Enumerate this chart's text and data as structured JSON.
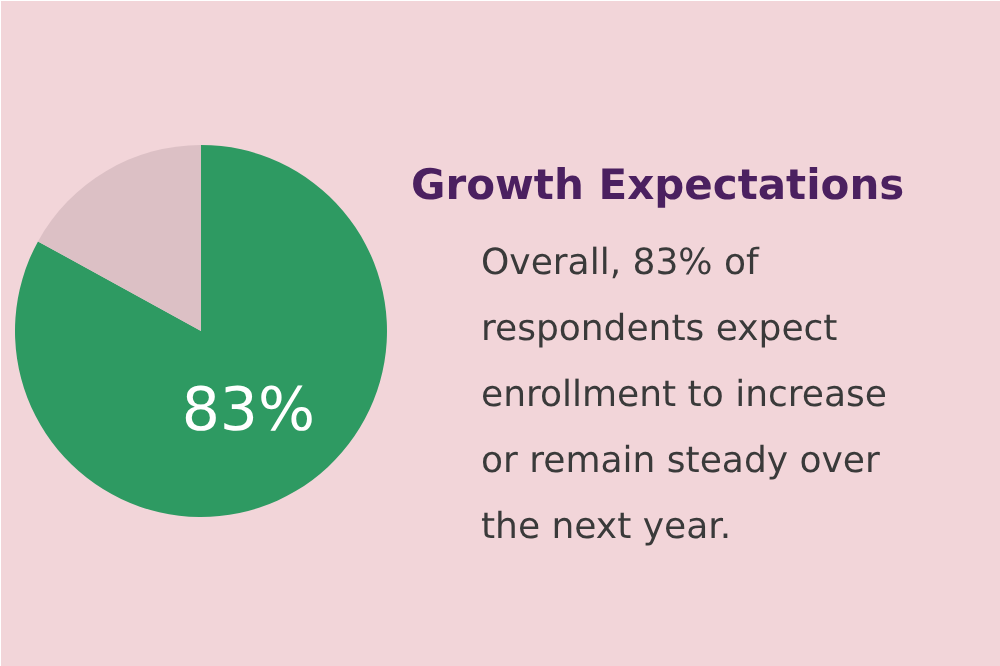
{
  "chart_data": {
    "type": "pie",
    "title": "Growth Expectations",
    "categories": [
      null,
      null
    ],
    "values": [
      83,
      17
    ],
    "colors": [
      "#2e9a62",
      "#dcc0c5"
    ],
    "value_labels": [
      "83%",
      null
    ],
    "annotations": [
      "Overall, 83% of respondents expect enrollment to increase or remain steady over the next year."
    ]
  }
}
